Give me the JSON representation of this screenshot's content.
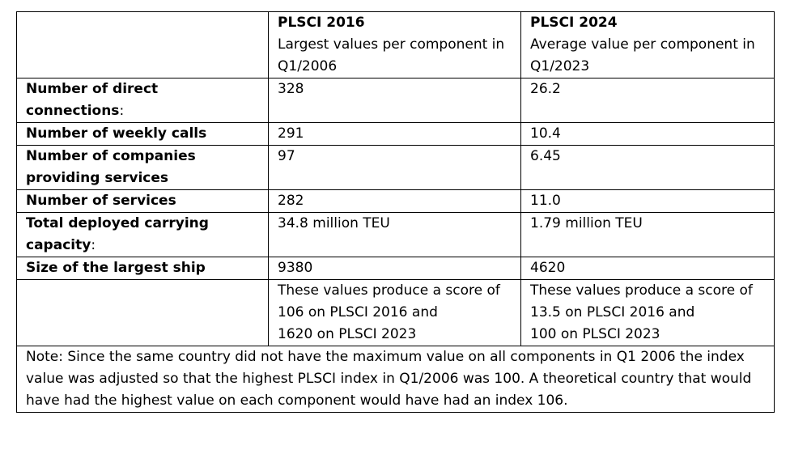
{
  "header": {
    "col2_title": "PLSCI 2016",
    "col2_subtitle": "Largest values per component in Q1/2006",
    "col3_title": "PLSCI 2024",
    "col3_subtitle": "Average value per component in Q1/2023"
  },
  "rows": [
    {
      "label_bold": "Number of direct connections",
      "label_tail": ":",
      "v2016": "328",
      "v2024": "26.2"
    },
    {
      "label_bold": "Number of weekly calls",
      "label_tail": "",
      "v2016": "291",
      "v2024": "10.4"
    },
    {
      "label_bold": "Number of companies providing services",
      "label_tail": "",
      "v2016": "97",
      "v2024": "6.45"
    },
    {
      "label_bold": "Number of services",
      "label_tail": "",
      "v2016": "282",
      "v2024": "11.0"
    },
    {
      "label_bold": "Total deployed carrying capacity",
      "label_tail": ":",
      "v2016": "34.8 million TEU",
      "v2024": "1.79 million TEU"
    },
    {
      "label_bold": "Size of the largest ship",
      "label_tail": "",
      "v2016": "9380",
      "v2024": "4620"
    }
  ],
  "scores": {
    "col2": {
      "line1": "These values produce a score of",
      "line2": "106 on PLSCI 2016 and",
      "line3": "1620 on PLSCI 2023"
    },
    "col3": {
      "line1": "These values produce a score of",
      "line2": "13.5 on PLSCI 2016 and",
      "line3": "100 on PLSCI 2023"
    }
  },
  "note": "Note: Since the same country did not have the maximum value on all components in Q1 2006 the index value was adjusted so that the highest PLSCI index in Q1/2006 was 100. A theoretical country that would have had the highest value on each component would have had an index 106."
}
